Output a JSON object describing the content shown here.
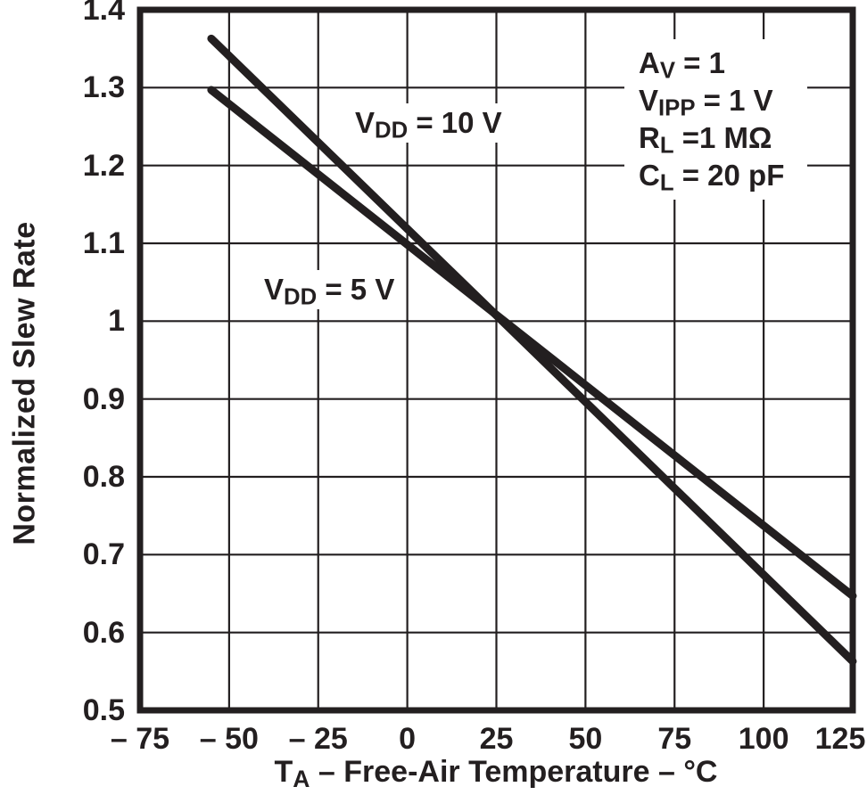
{
  "figure": {
    "background": "#ffffff",
    "ink_color": "#231f20"
  },
  "chart_data": {
    "type": "line",
    "title": "",
    "grid": true,
    "x_axis": {
      "title": {
        "main": "T",
        "sub": "A",
        "rest": " – Free-Air Temperature – °C"
      },
      "min": -75,
      "max": 125,
      "ticks": [
        -75,
        -50,
        -25,
        0,
        25,
        50,
        75,
        100,
        125
      ],
      "tick_labels": [
        "– 75",
        "– 50",
        "– 25",
        "0",
        "25",
        "50",
        "75",
        "100",
        "125"
      ]
    },
    "y_axis": {
      "title": "Normalized Slew Rate",
      "min": 0.5,
      "max": 1.4,
      "ticks": [
        1.4,
        1.3,
        1.2,
        1.1,
        1,
        0.9,
        0.8,
        0.7,
        0.6,
        0.5
      ],
      "tick_labels": [
        "1.4",
        "1.3",
        "1.2",
        "1.1",
        "1",
        "0.9",
        "0.8",
        "0.7",
        "0.6",
        "0.5"
      ]
    },
    "series": [
      {
        "name": "VDD = 10 V",
        "label": {
          "main": "V",
          "sub": "DD",
          "rest": " = 10 V"
        },
        "color": "#231f20",
        "points": [
          [
            -55,
            1.363
          ],
          [
            125,
            0.563
          ]
        ]
      },
      {
        "name": "VDD = 5 V",
        "label": {
          "main": "V",
          "sub": "DD",
          "rest": " = 5 V"
        },
        "color": "#231f20",
        "points": [
          [
            -55,
            1.297
          ],
          [
            125,
            0.647
          ]
        ]
      }
    ],
    "annotations": [
      {
        "main": "A",
        "sub": "V",
        "rest": " = 1"
      },
      {
        "main": "V",
        "sub": "IPP",
        "rest": " = 1 V"
      },
      {
        "main": "R",
        "sub": "L",
        "rest": " =1 MΩ"
      },
      {
        "main": "C",
        "sub": "L",
        "rest": " = 20 pF"
      }
    ]
  }
}
